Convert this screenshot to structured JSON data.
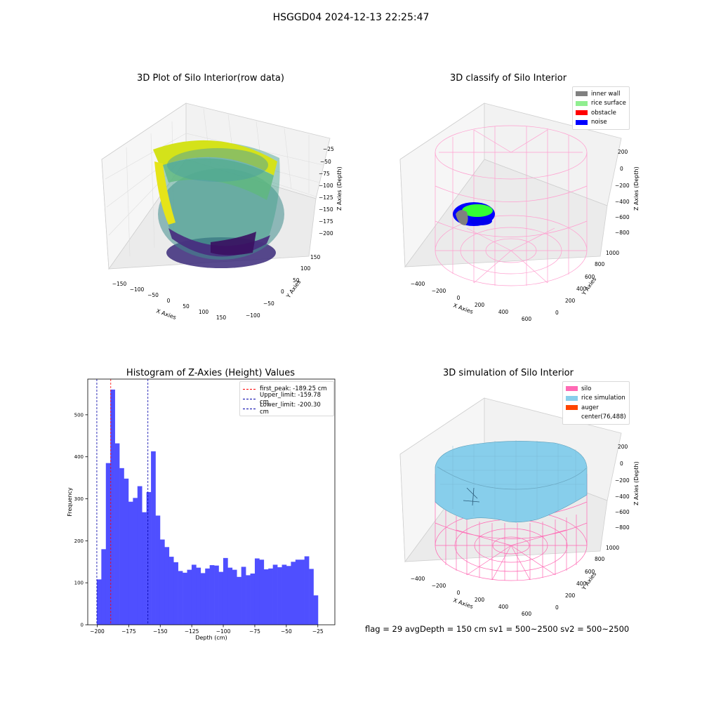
{
  "figure": {
    "suptitle": "HSGGD04 2024-12-13 22:25:47"
  },
  "footer": {
    "text": "flag = 29  avgDepth = 150 cm  sv1 = 500~2500  sv2 = 500~2500"
  },
  "panels": {
    "raw": {
      "title": "3D Plot of Silo Interior(row data)",
      "xlabel": "X Axies",
      "ylabel": "Y Axies",
      "zlabel": "Z Axies (Depth)",
      "xticks": [
        "−150",
        "−100",
        "−50",
        "0",
        "50",
        "100",
        "150"
      ],
      "yticks": [
        "−100",
        "−50",
        "0",
        "50",
        "100",
        "150"
      ],
      "zticks": [
        "−25",
        "−50",
        "−75",
        "−100",
        "−125",
        "−150",
        "−175",
        "−200"
      ]
    },
    "classify": {
      "title": "3D classify of Silo Interior",
      "xlabel": "X Axies",
      "ylabel": "Y Axies",
      "zlabel": "Z Axies (Depth)",
      "xticks": [
        "−400",
        "−200",
        "0",
        "200",
        "400",
        "600"
      ],
      "yticks": [
        "0",
        "200",
        "400",
        "600",
        "800",
        "1000"
      ],
      "zticks": [
        "200",
        "0",
        "−200",
        "−400",
        "−600",
        "−800"
      ],
      "legend": [
        {
          "label": "inner wall",
          "color": "#808080"
        },
        {
          "label": "rice surface",
          "color": "#90ee90"
        },
        {
          "label": "obstacle",
          "color": "#ff0000"
        },
        {
          "label": "noise",
          "color": "#0000ff"
        }
      ]
    },
    "simulation": {
      "title": "3D simulation of Silo Interior",
      "xlabel": "X Axies",
      "ylabel": "Y Axies",
      "zlabel": "Z Axies (Depth)",
      "xticks": [
        "−400",
        "−200",
        "0",
        "200",
        "400",
        "600"
      ],
      "yticks": [
        "0",
        "200",
        "400",
        "600",
        "800",
        "1000"
      ],
      "zticks": [
        "200",
        "0",
        "−200",
        "−400",
        "−600",
        "−800"
      ],
      "legend": [
        {
          "label": "silo",
          "color": "#ff69b4"
        },
        {
          "label": "rice simulation",
          "color": "#87ceeb"
        },
        {
          "label": "auger",
          "color": "#ff4500"
        },
        {
          "label": "center(76,488)",
          "color": ""
        }
      ]
    }
  },
  "chart_data": {
    "type": "bar",
    "title": "Histogram of Z-Axies (Height) Values",
    "xlabel": "Depth (cm)",
    "ylabel": "Frequency",
    "xlim": [
      -207.5,
      -11.5
    ],
    "ylim": [
      0,
      585
    ],
    "xticks": [
      -200,
      -175,
      -150,
      -125,
      -100,
      -75,
      -50,
      -25
    ],
    "xtick_labels": [
      "−200",
      "−175",
      "−150",
      "−125",
      "−100",
      "−75",
      "−50",
      "−25"
    ],
    "yticks": [
      0,
      100,
      200,
      300,
      400,
      500
    ],
    "bar_color": "#4f4fff",
    "bins": {
      "start": -200.3,
      "width": 3.58
    },
    "values": [
      108,
      180,
      385,
      560,
      432,
      373,
      348,
      293,
      302,
      330,
      268,
      316,
      413,
      260,
      203,
      185,
      162,
      149,
      128,
      124,
      131,
      143,
      136,
      123,
      134,
      142,
      141,
      126,
      159,
      136,
      131,
      114,
      138,
      118,
      122,
      158,
      155,
      132,
      134,
      143,
      137,
      143,
      140,
      150,
      155,
      155,
      163,
      133,
      70
    ],
    "vlines": [
      {
        "label": "first_peak: -189.25 cm",
        "x": -189.25,
        "color": "#ff0000"
      },
      {
        "label": "Upper_limit: -159.78 cm",
        "x": -159.78,
        "color": "#0000aa"
      },
      {
        "label": "Lower_limit: -200.30 cm",
        "x": -200.3,
        "color": "#0000aa"
      }
    ]
  }
}
